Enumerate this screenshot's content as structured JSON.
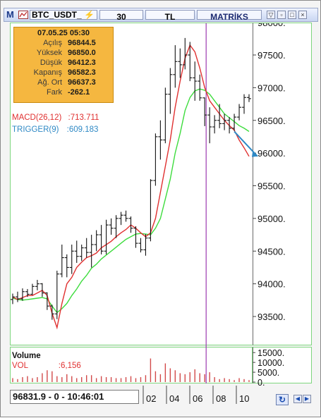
{
  "toolbar": {
    "logo": "M",
    "symbol": "BTC_USDT_",
    "lightning_icon": "lightning-icon",
    "period": "30",
    "currency": "TL",
    "brand": "MATRİKS"
  },
  "info_box": {
    "date_time": "07.05.25 05:30",
    "rows": [
      {
        "label": "Açılış",
        "value": "96844.5"
      },
      {
        "label": "Yüksek",
        "value": "96850.0"
      },
      {
        "label": "Düşük",
        "value": "96412.3"
      },
      {
        "label": "Kapanış",
        "value": "96582.3"
      },
      {
        "label": "Ağ. Ort",
        "value": "96637.3"
      },
      {
        "label": "Fark",
        "value": "-262.1"
      }
    ]
  },
  "indicators": {
    "macd_label": "MACD(26,12)",
    "macd_value": ":713.711",
    "trigger_label": "TRIGGER(9)",
    "trigger_value": ":609.183",
    "volume_title": "Volume",
    "vol_label": "VOL",
    "vol_value": ":6,156"
  },
  "status": {
    "readout": "96831.9 - 0 - 10:46:01"
  },
  "colors": {
    "macd": "#e03030",
    "trigger": "#2f89c5",
    "ma_green": "#3ddc3d",
    "cursor": "#9b3bb0",
    "info_bg": "#f5b740"
  },
  "chart_data": {
    "type": "candlestick",
    "price_axis": {
      "ticks": [
        "97500.",
        "97000.",
        "96500.",
        "96000.",
        "95500.",
        "95000.",
        "94500.",
        "94000.",
        "93500."
      ],
      "top_partial": "98000.",
      "ylim": [
        93000,
        98050
      ]
    },
    "volume_axis": {
      "ticks": [
        "15000.",
        "10000.",
        "5000.",
        "0."
      ]
    },
    "x_axis": {
      "ticks": [
        "02",
        "04",
        "06",
        "08",
        "10"
      ]
    },
    "ohlc": [
      [
        93760,
        93850,
        93690,
        93800
      ],
      [
        93800,
        93880,
        93720,
        93770
      ],
      [
        93770,
        93930,
        93740,
        93880
      ],
      [
        93880,
        93920,
        93800,
        93840
      ],
      [
        93840,
        94000,
        93830,
        93960
      ],
      [
        93960,
        94060,
        93900,
        94000
      ],
      [
        94000,
        94010,
        93800,
        93860
      ],
      [
        93860,
        93870,
        93600,
        93660
      ],
      [
        93660,
        93680,
        93450,
        93540
      ],
      [
        93540,
        94200,
        93460,
        94150
      ],
      [
        94150,
        94600,
        94100,
        94400
      ],
      [
        94400,
        94450,
        94100,
        94250
      ],
      [
        94250,
        94600,
        94150,
        94500
      ],
      [
        94500,
        94660,
        94320,
        94420
      ],
      [
        94420,
        94600,
        94350,
        94550
      ],
      [
        94550,
        94700,
        94400,
        94480
      ],
      [
        94480,
        94750,
        94250,
        94600
      ],
      [
        94600,
        94820,
        94500,
        94750
      ],
      [
        94750,
        94900,
        94450,
        94500
      ],
      [
        94500,
        94980,
        94450,
        94900
      ],
      [
        94900,
        95000,
        94750,
        94850
      ],
      [
        94850,
        95050,
        94700,
        95000
      ],
      [
        95000,
        95100,
        94900,
        95050
      ],
      [
        95050,
        95120,
        94950,
        95000
      ],
      [
        95000,
        95030,
        94780,
        94850
      ],
      [
        94850,
        94880,
        94550,
        94620
      ],
      [
        94620,
        94700,
        94480,
        94520
      ],
      [
        94520,
        94760,
        94430,
        94700
      ],
      [
        94700,
        95600,
        94650,
        95580
      ],
      [
        95580,
        96300,
        95500,
        96250
      ],
      [
        96250,
        96500,
        95900,
        96200
      ],
      [
        96200,
        97000,
        96150,
        96900
      ],
      [
        96900,
        97300,
        96600,
        97200
      ],
      [
        97200,
        97650,
        97000,
        97400
      ],
      [
        97400,
        97600,
        97150,
        97350
      ],
      [
        97350,
        97760,
        97280,
        97500
      ],
      [
        97500,
        97700,
        97100,
        97150
      ],
      [
        97150,
        97400,
        96800,
        97100
      ],
      [
        97100,
        97200,
        96800,
        96844
      ],
      [
        96844,
        96850,
        96412,
        96582
      ],
      [
        96582,
        96700,
        96150,
        96400
      ],
      [
        96400,
        96580,
        96300,
        96500
      ],
      [
        96500,
        96750,
        96380,
        96450
      ],
      [
        96450,
        96600,
        96350,
        96500
      ],
      [
        96500,
        96550,
        96300,
        96380
      ],
      [
        96380,
        96600,
        96340,
        96550
      ],
      [
        96550,
        96750,
        96500,
        96700
      ],
      [
        96700,
        96900,
        96600,
        96850
      ],
      [
        96850,
        96900,
        96780,
        96832
      ]
    ],
    "macd_line": [
      93800,
      93760,
      93790,
      93820,
      93820,
      93860,
      93900,
      93820,
      93550,
      93330,
      93700,
      94000,
      94100,
      94250,
      94330,
      94400,
      94430,
      94470,
      94550,
      94600,
      94650,
      94720,
      94780,
      94830,
      94900,
      94850,
      94780,
      94720,
      94780,
      95000,
      95400,
      95800,
      96200,
      96700,
      97100,
      97450,
      97650,
      97550,
      97300,
      97000,
      96800,
      96700,
      96600,
      96500,
      96420,
      96350,
      96200,
      96080,
      95950
    ],
    "trigger_line": [
      93780,
      93760,
      93750,
      93760,
      93770,
      93780,
      93790,
      93770,
      93660,
      93560,
      93620,
      93700,
      93820,
      93920,
      94040,
      94130,
      94240,
      94300,
      94380,
      94440,
      94500,
      94560,
      94620,
      94680,
      94720,
      94760,
      94770,
      94760,
      94750,
      94850,
      95000,
      95300,
      95600,
      96000,
      96300,
      96650,
      96850,
      96950,
      96980,
      96960,
      96900,
      96800,
      96700,
      96600,
      96540,
      96480,
      96420,
      96380,
      96330
    ],
    "volume": [
      2000,
      1500,
      2500,
      3000,
      2000,
      2500,
      4500,
      6000,
      5500,
      3000,
      2500,
      4000,
      3000,
      2000,
      2500,
      3500,
      3500,
      2000,
      3000,
      2500,
      2500,
      2000,
      2000,
      2500,
      3000,
      2000,
      2500,
      3500,
      12000,
      5500,
      4000,
      9500,
      7000,
      6000,
      4500,
      4000,
      5000,
      6500,
      4500,
      4000,
      5000,
      2500,
      1500,
      2000,
      1500,
      1000,
      2000,
      1500,
      1000
    ],
    "cursor_index": 39,
    "trend_arrow": {
      "from_index": 45,
      "from_value": 96330,
      "to_index": 50,
      "to_value": 95950
    }
  }
}
